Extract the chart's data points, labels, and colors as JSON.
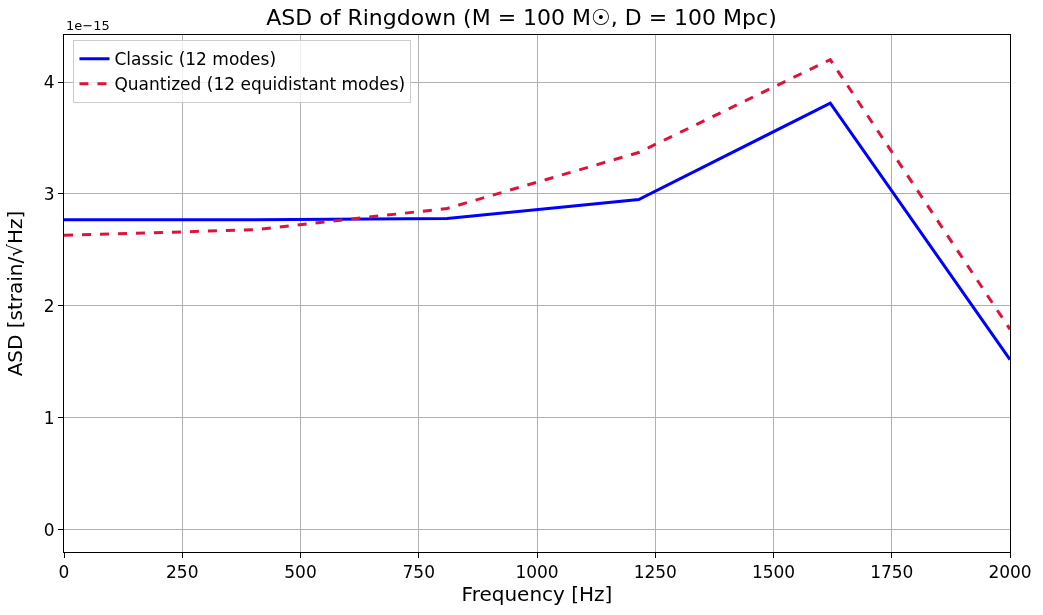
{
  "chart_data": {
    "type": "line",
    "title": "ASD of Ringdown (M = 100 M☉, D = 100 Mpc)",
    "xlabel": "Frequency [Hz]",
    "ylabel": "ASD [strain/√Hz]",
    "annotations": [
      "1e−15"
    ],
    "x": [
      0,
      405,
      810,
      1215,
      1620,
      2000
    ],
    "series": [
      {
        "name": "Classic (12 modes)",
        "color": "#0000ff",
        "line_style": "solid",
        "values": [
          2.77,
          2.77,
          2.78,
          2.95,
          3.81,
          1.52
        ]
      },
      {
        "name": "Quantized (12 equidistant modes)",
        "color": "#dc143c",
        "line_style": "dashed",
        "values": [
          2.63,
          2.68,
          2.87,
          3.37,
          4.2,
          1.79
        ]
      }
    ],
    "xlim": [
      0,
      2000
    ],
    "xticks": [
      0,
      250,
      500,
      750,
      1000,
      1250,
      1500,
      1750,
      2000
    ],
    "ylim": [
      -0.2,
      4.42
    ],
    "yticks": [
      0,
      1,
      2,
      3,
      4
    ],
    "grid": true,
    "legend": "top left",
    "marker": "none"
  }
}
